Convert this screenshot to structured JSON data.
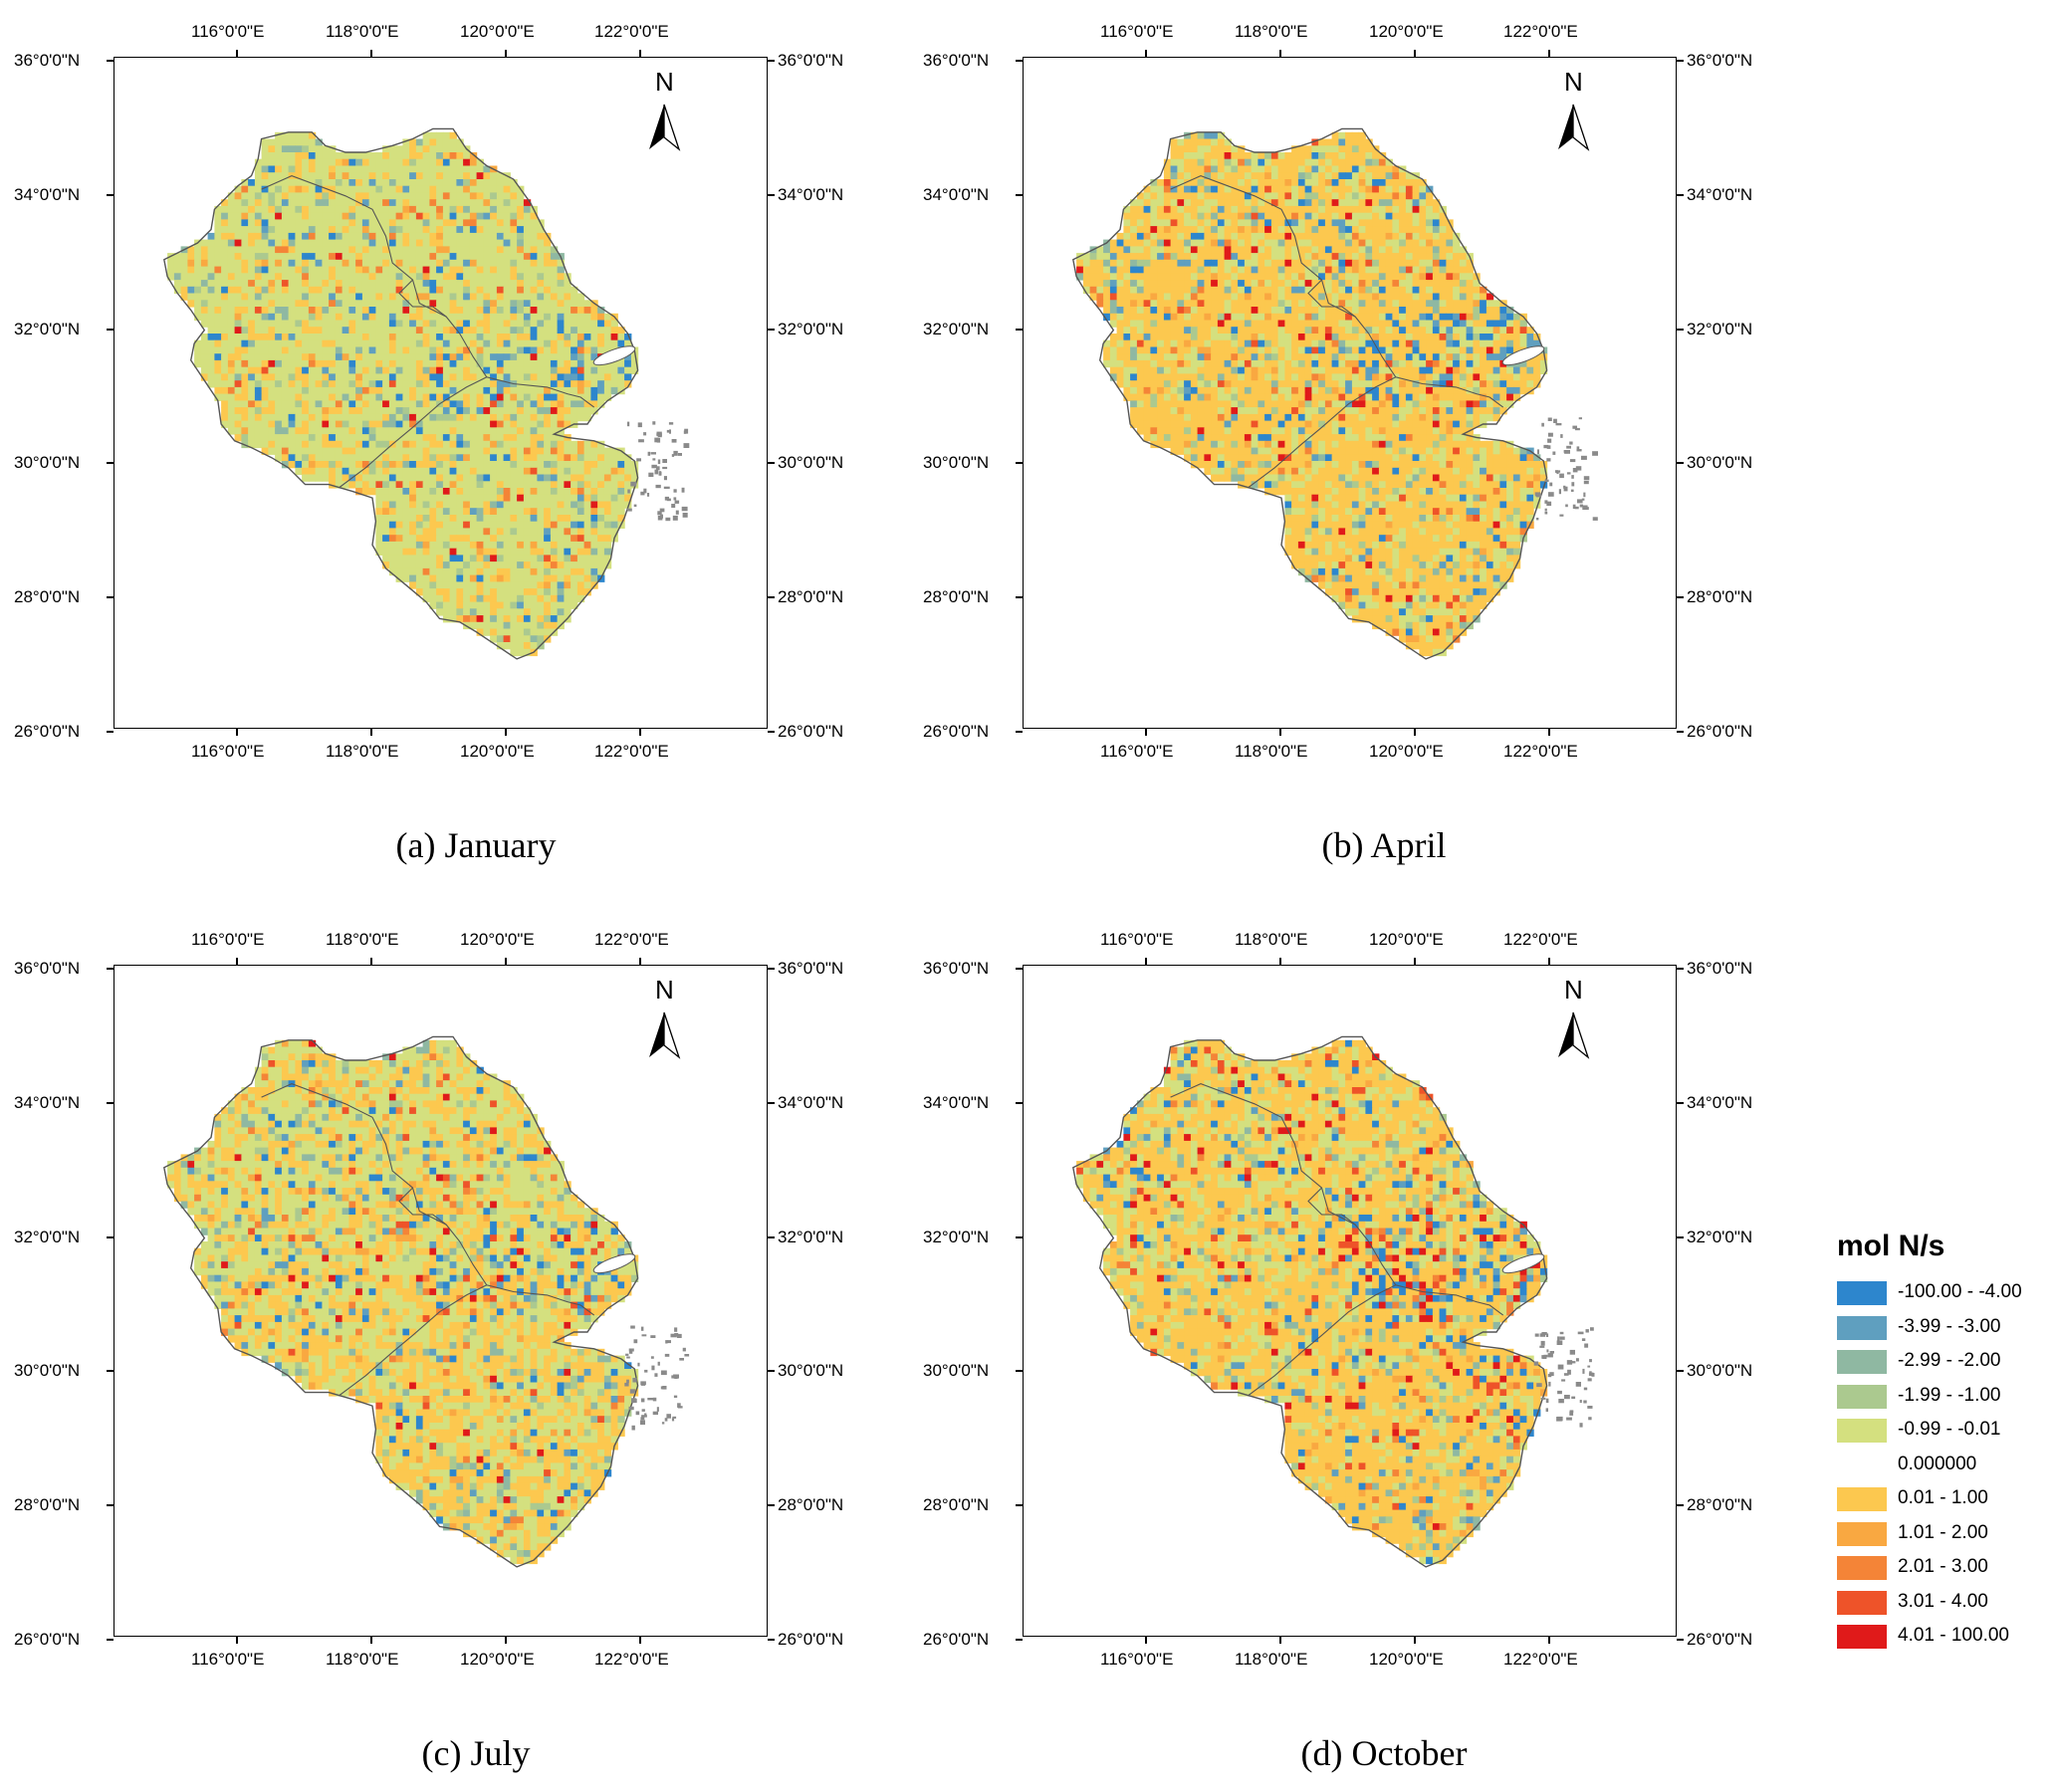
{
  "panels": [
    {
      "caption": "(a) January",
      "id": "jan"
    },
    {
      "caption": "(b) April",
      "id": "apr"
    },
    {
      "caption": "(c) July",
      "id": "jul"
    },
    {
      "caption": "(d) October",
      "id": "oct"
    }
  ],
  "axes": {
    "lon_labels": [
      "116°0'0\"E",
      "118°0'0\"E",
      "120°0'0\"E",
      "122°0'0\"E"
    ],
    "lat_labels": [
      "36°0'0\"N",
      "34°0'0\"N",
      "32°0'0\"N",
      "30°0'0\"N",
      "28°0'0\"N",
      "26°0'0\"N"
    ],
    "lon_values": [
      116,
      118,
      120,
      122
    ],
    "lat_values": [
      36,
      34,
      32,
      30,
      28,
      26
    ]
  },
  "north_arrow_label": "N",
  "legend": {
    "title": "mol N/s",
    "items": [
      {
        "label": "-100.00 - -4.00",
        "color": "#2d86cd"
      },
      {
        "label": "-3.99 - -3.00",
        "color": "#5f9fbf"
      },
      {
        "label": "-2.99 - -2.00",
        "color": "#8fb8a2"
      },
      {
        "label": "-1.99 - -1.00",
        "color": "#abc98f"
      },
      {
        "label": "-0.99 - -0.01",
        "color": "#d4e07f"
      },
      {
        "label": "0.000000",
        "color": "#ffffff"
      },
      {
        "label": "0.01 - 1.00",
        "color": "#fcc84f"
      },
      {
        "label": "1.01 - 2.00",
        "color": "#f9a841"
      },
      {
        "label": "2.01 - 3.00",
        "color": "#f48437"
      },
      {
        "label": "3.01 - 4.00",
        "color": "#ee5329"
      },
      {
        "label": "4.01 - 100.00",
        "color": "#e01a1a"
      }
    ]
  },
  "colors": {
    "land_neg_small": "#d4e07f",
    "land_pos_small": "#fcc84f",
    "boundary": "#555555"
  }
}
